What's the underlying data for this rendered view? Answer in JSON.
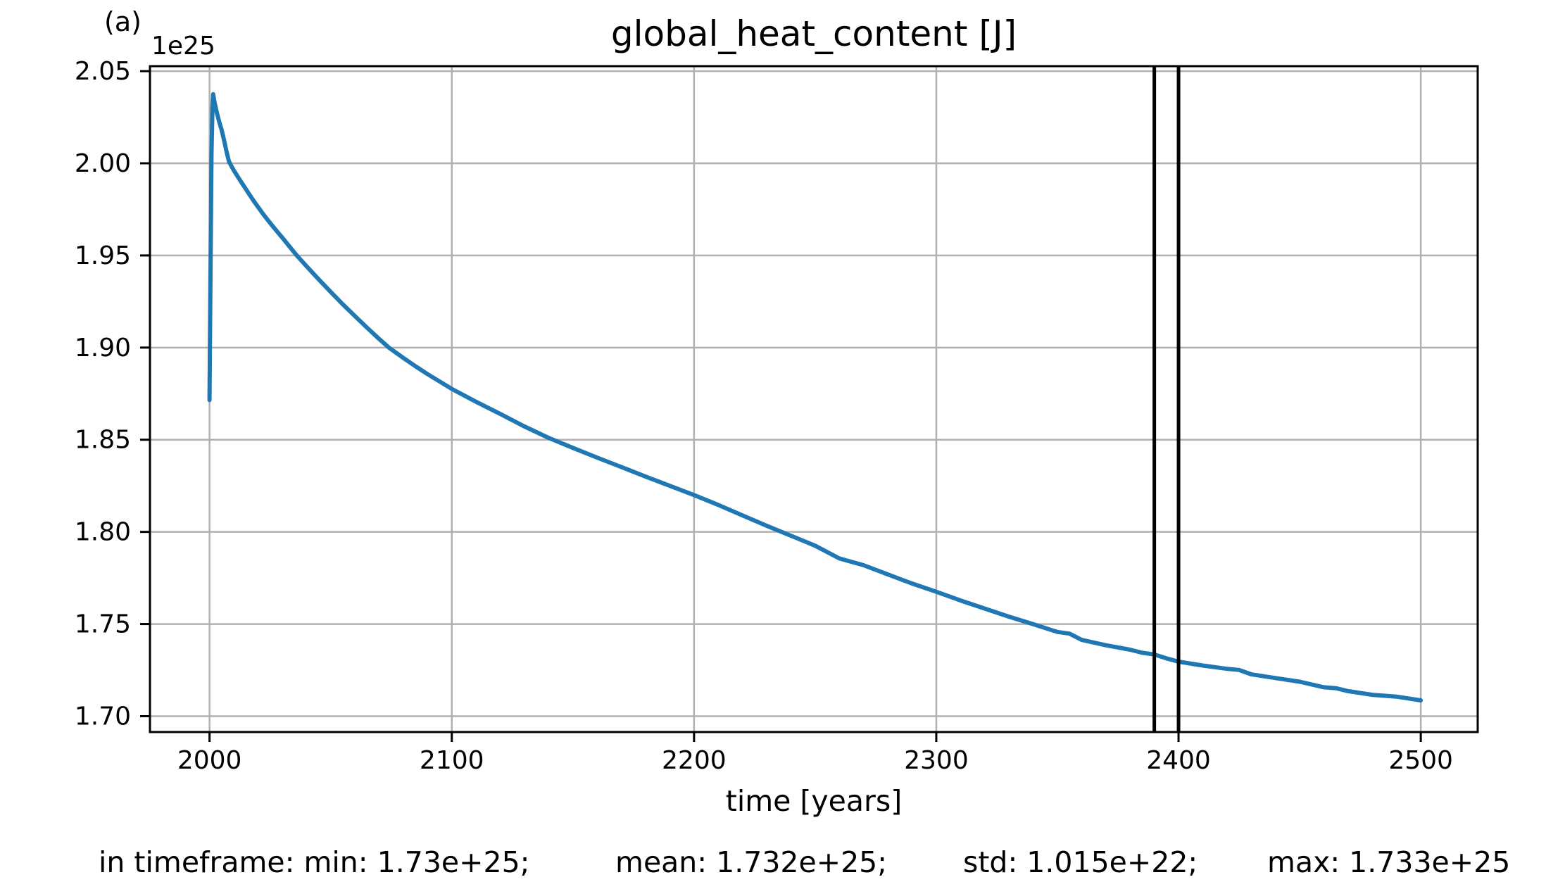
{
  "figure": {
    "panel_label": "(a)",
    "title": "global_heat_content [J]",
    "y_offset_label": "1e25",
    "xlabel": "time [years]",
    "stats_line": {
      "min_segment": "in timeframe: min: 1.73e+25;",
      "mean_segment": "mean: 1.732e+25;",
      "std_segment": "std: 1.015e+22;",
      "max_segment": "max: 1.733e+25"
    }
  },
  "colors": {
    "line": "#1f77b4",
    "grid": "#b0b0b0",
    "spine": "#000000",
    "vline": "#000000",
    "text": "#000000",
    "background": "#ffffff"
  },
  "chart_data": {
    "type": "line",
    "title": "global_heat_content [J]",
    "xlabel": "time [years]",
    "ylabel": "",
    "y_scale_factor_label": "1e25",
    "grid": true,
    "legend": false,
    "xlim": [
      1975.4,
      2523.5
    ],
    "ylim_1e25": [
      1.6914,
      2.0527
    ],
    "x_ticks": [
      2000,
      2100,
      2200,
      2300,
      2400,
      2500
    ],
    "x_tick_labels": [
      "2000",
      "2100",
      "2200",
      "2300",
      "2400",
      "2500"
    ],
    "y_ticks_1e25": [
      1.7,
      1.75,
      1.8,
      1.85,
      1.9,
      1.95,
      2.0,
      2.05
    ],
    "y_tick_labels": [
      "1.70",
      "1.75",
      "1.80",
      "1.85",
      "1.90",
      "1.95",
      "2.00",
      "2.05"
    ],
    "vlines_x": [
      2390,
      2400
    ],
    "stats_in_timeframe": {
      "min": "1.73e+25",
      "mean": "1.732e+25",
      "std": "1.015e+22",
      "max": "1.733e+25"
    },
    "series": [
      {
        "name": "global_heat_content",
        "color": "#1f77b4",
        "x": [
          2000,
          2000.4,
          2000.8,
          2001.2,
          2001.5,
          2002,
          2003,
          2004,
          2005,
          2006,
          2007,
          2008,
          2009,
          2010,
          2012,
          2014,
          2016,
          2018,
          2020,
          2022,
          2024,
          2026,
          2028,
          2030,
          2033,
          2036,
          2040,
          2045,
          2050,
          2055,
          2060,
          2065,
          2070,
          2074,
          2080,
          2085,
          2090,
          2095,
          2100,
          2110,
          2120,
          2130,
          2140,
          2150,
          2160,
          2170,
          2180,
          2190,
          2200,
          2210,
          2220,
          2230,
          2240,
          2250,
          2260,
          2270,
          2280,
          2290,
          2300,
          2310,
          2320,
          2330,
          2340,
          2350,
          2355,
          2360,
          2370,
          2380,
          2385,
          2390,
          2395,
          2400,
          2410,
          2420,
          2425,
          2430,
          2440,
          2450,
          2460,
          2465,
          2470,
          2480,
          2490,
          2500
        ],
        "y_1e25": [
          1.8715,
          1.94,
          2.005,
          2.03,
          2.0375,
          2.0335,
          2.0275,
          2.0225,
          2.018,
          2.0125,
          2.0065,
          2.001,
          1.9985,
          1.9962,
          1.992,
          1.988,
          1.984,
          1.98,
          1.9763,
          1.9727,
          1.9693,
          1.966,
          1.9628,
          1.9597,
          1.9548,
          1.95,
          1.9442,
          1.9371,
          1.9302,
          1.9235,
          1.9171,
          1.9108,
          1.9047,
          1.9,
          1.8944,
          1.8899,
          1.8856,
          1.8816,
          1.8776,
          1.8706,
          1.864,
          1.8572,
          1.851,
          1.8456,
          1.8403,
          1.8352,
          1.83,
          1.825,
          1.82,
          1.8146,
          1.8089,
          1.8033,
          1.7979,
          1.7925,
          1.7856,
          1.7819,
          1.7769,
          1.772,
          1.7675,
          1.7628,
          1.7584,
          1.754,
          1.7499,
          1.7457,
          1.7448,
          1.7414,
          1.7385,
          1.7361,
          1.7344,
          1.7335,
          1.7314,
          1.7296,
          1.7275,
          1.7257,
          1.7251,
          1.7227,
          1.7207,
          1.7187,
          1.7157,
          1.7152,
          1.7136,
          1.7116,
          1.7106,
          1.7086
        ]
      }
    ]
  }
}
